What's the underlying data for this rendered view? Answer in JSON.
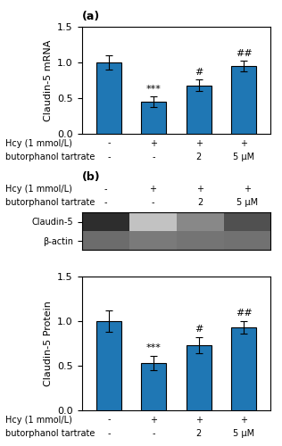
{
  "chart_data": [
    {
      "type": "bar",
      "title": "(a)",
      "x_label_rows": [
        {
          "label": "Hcy (1 mmol/L)",
          "values": [
            "-",
            "+",
            "+",
            "+"
          ]
        },
        {
          "label": "butorphanol tartrate",
          "values": [
            "-",
            "-",
            "2",
            "5 μM"
          ]
        }
      ],
      "ylabel": "Claudin-5 mRNA",
      "values": [
        1.0,
        0.45,
        0.68,
        0.95
      ],
      "errors": [
        0.1,
        0.07,
        0.08,
        0.07
      ],
      "ylim": [
        0,
        1.5
      ],
      "yticks": [
        {
          "value": 0,
          "label": "0.0"
        },
        0.5,
        1.0,
        1.5
      ],
      "annotations": [
        {
          "index": 1,
          "y": 0.56,
          "text": "***"
        },
        {
          "index": 2,
          "y": 0.8,
          "text": "#"
        },
        {
          "index": 3,
          "y": 1.06,
          "text": "##"
        }
      ]
    },
    {
      "type": "heatmap",
      "title": "(b)",
      "x_label_rows": [
        {
          "label": "Hcy (1 mmol/L)",
          "values": [
            "-",
            "+",
            "+",
            "+"
          ]
        },
        {
          "label": "butorphanol tartrate",
          "values": [
            "-",
            "-",
            "2",
            "5 μM"
          ]
        }
      ],
      "rows": [
        "Claudin-5",
        "β-actin"
      ],
      "cells": [
        [
          0.85,
          0.35,
          0.55,
          0.75
        ],
        [
          0.65,
          0.6,
          0.62,
          0.63
        ]
      ],
      "color_range": [
        0,
        1
      ]
    },
    {
      "type": "bar",
      "x_label_rows": [
        {
          "label": "Hcy (1 mmol/L)",
          "values": [
            "-",
            "+",
            "+",
            "+"
          ]
        },
        {
          "label": "butorphanol tartrate",
          "values": [
            "-",
            "-",
            "2",
            "5 μM"
          ]
        }
      ],
      "ylabel": "Claudin-5 Protein",
      "values": [
        1.0,
        0.53,
        0.73,
        0.93
      ],
      "errors": [
        0.12,
        0.08,
        0.09,
        0.07
      ],
      "ylim": [
        0,
        1.5
      ],
      "yticks": [
        {
          "value": 0,
          "label": "0.0"
        },
        0.5,
        1.0,
        1.5
      ],
      "annotations": [
        {
          "index": 1,
          "y": 0.65,
          "text": "***"
        },
        {
          "index": 2,
          "y": 0.86,
          "text": "#"
        },
        {
          "index": 3,
          "y": 1.04,
          "text": "##"
        }
      ]
    }
  ]
}
